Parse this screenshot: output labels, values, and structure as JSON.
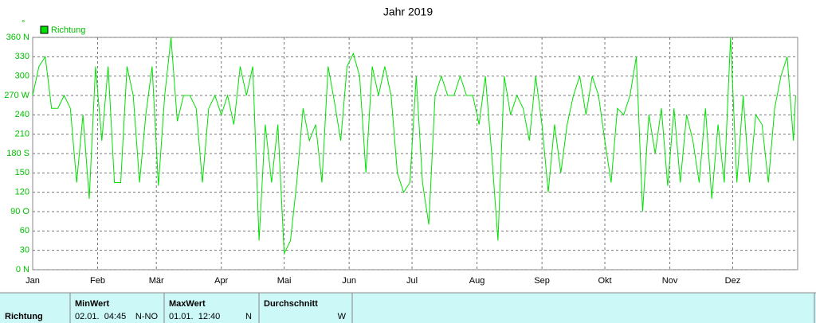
{
  "chart_data": {
    "type": "line",
    "title": "Jahr 2019",
    "y_unit": "°",
    "x": [
      1,
      4,
      7,
      10,
      13,
      16,
      19,
      22,
      25,
      28,
      31,
      34,
      37,
      40,
      43,
      46,
      49,
      52,
      55,
      58,
      61,
      64,
      67,
      70,
      73,
      76,
      79,
      82,
      85,
      88,
      91,
      94,
      97,
      100,
      103,
      106,
      109,
      112,
      115,
      118,
      121,
      124,
      127,
      130,
      133,
      136,
      139,
      142,
      145,
      148,
      151,
      154,
      157,
      160,
      163,
      166,
      169,
      172,
      175,
      178,
      181,
      184,
      187,
      190,
      193,
      196,
      199,
      202,
      205,
      208,
      211,
      214,
      217,
      220,
      223,
      226,
      229,
      232,
      235,
      238,
      241,
      244,
      247,
      250,
      253,
      256,
      259,
      262,
      265,
      268,
      271,
      274,
      277,
      280,
      283,
      286,
      289,
      292,
      295,
      298,
      301,
      304,
      307,
      310,
      313,
      316,
      319,
      322,
      325,
      328,
      331,
      334,
      337,
      340,
      343,
      346,
      349,
      352,
      355,
      358,
      361,
      364,
      365
    ],
    "series": [
      {
        "name": "Richtung",
        "color": "#00e000",
        "values": [
          270,
          315,
          330,
          250,
          250,
          270,
          250,
          135,
          240,
          110,
          315,
          200,
          315,
          135,
          135,
          315,
          270,
          135,
          240,
          315,
          130,
          270,
          360,
          230,
          270,
          270,
          250,
          135,
          250,
          270,
          240,
          270,
          225,
          315,
          270,
          315,
          45,
          225,
          135,
          225,
          25,
          45,
          135,
          250,
          200,
          225,
          135,
          315,
          260,
          200,
          315,
          335,
          300,
          150,
          315,
          270,
          315,
          270,
          150,
          120,
          135,
          300,
          135,
          70,
          270,
          300,
          270,
          270,
          300,
          270,
          270,
          225,
          300,
          180,
          45,
          300,
          240,
          270,
          250,
          200,
          300,
          225,
          120,
          225,
          150,
          225,
          270,
          300,
          240,
          300,
          270,
          200,
          135,
          250,
          240,
          270,
          330,
          90,
          240,
          180,
          250,
          130,
          250,
          135,
          240,
          200,
          135,
          250,
          110,
          225,
          135,
          360,
          135,
          270,
          135,
          240,
          225,
          135,
          250,
          300,
          330,
          200,
          270
        ]
      }
    ],
    "xlim": [
      1,
      366
    ],
    "xticks": [
      {
        "value": 1,
        "label": "Jan"
      },
      {
        "value": 32,
        "label": "Feb"
      },
      {
        "value": 60,
        "label": "Mär"
      },
      {
        "value": 91,
        "label": "Apr"
      },
      {
        "value": 121,
        "label": "Mai"
      },
      {
        "value": 152,
        "label": "Jun"
      },
      {
        "value": 182,
        "label": "Jul"
      },
      {
        "value": 213,
        "label": "Aug"
      },
      {
        "value": 244,
        "label": "Sep"
      },
      {
        "value": 274,
        "label": "Okt"
      },
      {
        "value": 305,
        "label": "Nov"
      },
      {
        "value": 335,
        "label": "Dez"
      }
    ],
    "ylim": [
      0,
      360
    ],
    "yticks": [
      {
        "value": 0,
        "label": "0 N"
      },
      30,
      60,
      {
        "value": 90,
        "label": "90 O"
      },
      120,
      150,
      {
        "value": 180,
        "label": "180 S"
      },
      210,
      240,
      {
        "value": 270,
        "label": "270 W"
      },
      300,
      330,
      {
        "value": 360,
        "label": "360 N"
      }
    ],
    "grid": true,
    "legend": "top-left"
  },
  "table": {
    "row_label": "Richtung",
    "columns": [
      {
        "header": "MinWert",
        "time": "02.01.  04:45",
        "direction": "N-NO"
      },
      {
        "header": "MaxWert",
        "time": "01.01.  12:40",
        "direction": "N"
      },
      {
        "header": "Durchschnitt",
        "direction": "W"
      }
    ]
  }
}
